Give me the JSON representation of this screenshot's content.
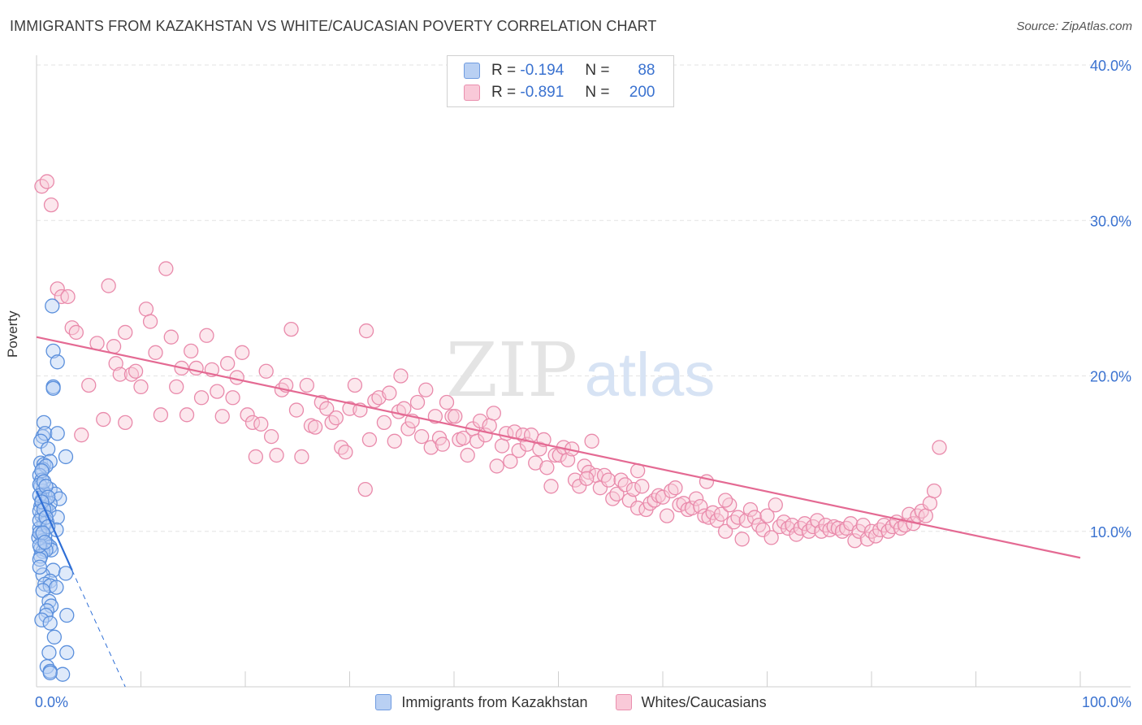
{
  "title": "IMMIGRANTS FROM KAZAKHSTAN VS WHITE/CAUCASIAN POVERTY CORRELATION CHART",
  "source": "Source: ZipAtlas.com",
  "watermark": {
    "zip": "ZIP",
    "atlas": "atlas"
  },
  "legend_stats": {
    "r_label": "R =",
    "n_label": "N =",
    "series": [
      {
        "r": "-0.194",
        "n": "88"
      },
      {
        "r": "-0.891",
        "n": "200"
      }
    ]
  },
  "colors": {
    "blue_fill": "#b9d0f3",
    "blue_stroke": "#5a8fdc",
    "blue_line": "#2f6fd6",
    "pink_fill": "#f9c9d8",
    "pink_stroke": "#e98aab",
    "pink_line": "#e46a93",
    "axis_text": "#3a72d0",
    "grid": "#e3e3e3"
  },
  "chart_data": {
    "type": "scatter",
    "title": "IMMIGRANTS FROM KAZAKHSTAN VS WHITE/CAUCASIAN POVERTY CORRELATION CHART",
    "xlabel": "",
    "ylabel": "Poverty",
    "xlim": [
      0,
      100
    ],
    "ylim": [
      0,
      40
    ],
    "x_tick_labels": [
      "0.0%",
      "100.0%"
    ],
    "y_ticks": [
      10,
      20,
      30,
      40
    ],
    "y_tick_labels": [
      "10.0%",
      "20.0%",
      "30.0%",
      "40.0%"
    ],
    "grid": true,
    "legend_position": "top-center",
    "series": [
      {
        "name": "Immigrants from Kazakhstan",
        "color": "blue",
        "r": -0.194,
        "n": 88,
        "trend": {
          "x": [
            0,
            3.4
          ],
          "y": [
            12.6,
            7.5
          ]
        },
        "trend_extension": {
          "x": [
            3.4,
            8.5
          ],
          "y": [
            7.5,
            0
          ]
        },
        "points": [
          [
            1.5,
            24.5
          ],
          [
            1.6,
            21.6
          ],
          [
            2.0,
            20.9
          ],
          [
            1.6,
            19.3
          ],
          [
            1.6,
            19.2
          ],
          [
            0.7,
            17.0
          ],
          [
            0.6,
            16.1
          ],
          [
            0.8,
            16.3
          ],
          [
            2.0,
            16.3
          ],
          [
            0.4,
            15.8
          ],
          [
            1.1,
            15.3
          ],
          [
            2.8,
            14.8
          ],
          [
            0.4,
            14.4
          ],
          [
            0.7,
            14.3
          ],
          [
            1.3,
            14.5
          ],
          [
            0.6,
            14.0
          ],
          [
            0.9,
            14.2
          ],
          [
            0.3,
            13.6
          ],
          [
            0.5,
            13.3
          ],
          [
            0.4,
            12.9
          ],
          [
            1.3,
            12.7
          ],
          [
            0.6,
            12.6
          ],
          [
            0.8,
            12.4
          ],
          [
            1.8,
            12.4
          ],
          [
            2.2,
            12.1
          ],
          [
            0.5,
            12.0
          ],
          [
            0.8,
            11.8
          ],
          [
            1.3,
            11.8
          ],
          [
            0.4,
            11.6
          ],
          [
            0.9,
            11.5
          ],
          [
            1.2,
            11.3
          ],
          [
            0.5,
            11.0
          ],
          [
            2.0,
            10.9
          ],
          [
            0.7,
            10.5
          ],
          [
            1.0,
            10.6
          ],
          [
            0.3,
            10.2
          ],
          [
            1.9,
            10.1
          ],
          [
            0.5,
            9.8
          ],
          [
            0.8,
            9.7
          ],
          [
            0.2,
            9.6
          ],
          [
            0.6,
            9.4
          ],
          [
            1.0,
            9.2
          ],
          [
            1.3,
            9.0
          ],
          [
            0.4,
            8.9
          ],
          [
            1.4,
            8.8
          ],
          [
            0.6,
            8.7
          ],
          [
            0.9,
            8.8
          ],
          [
            0.4,
            8.4
          ],
          [
            1.6,
            7.5
          ],
          [
            0.6,
            7.2
          ],
          [
            2.8,
            7.3
          ],
          [
            1.3,
            6.8
          ],
          [
            0.8,
            6.6
          ],
          [
            1.3,
            6.5
          ],
          [
            1.9,
            6.4
          ],
          [
            0.6,
            6.2
          ],
          [
            1.2,
            5.5
          ],
          [
            1.4,
            5.2
          ],
          [
            1.0,
            4.9
          ],
          [
            0.9,
            4.6
          ],
          [
            2.9,
            4.6
          ],
          [
            0.5,
            4.3
          ],
          [
            1.3,
            4.1
          ],
          [
            1.7,
            3.2
          ],
          [
            2.9,
            2.2
          ],
          [
            1.2,
            2.2
          ],
          [
            1.0,
            1.3
          ],
          [
            1.3,
            1.0
          ],
          [
            2.5,
            0.8
          ],
          [
            1.3,
            0.9
          ],
          [
            0.3,
            13.0
          ],
          [
            0.3,
            12.3
          ],
          [
            0.3,
            11.3
          ],
          [
            0.3,
            10.7
          ],
          [
            0.3,
            9.9
          ],
          [
            0.3,
            9.1
          ],
          [
            0.3,
            8.2
          ],
          [
            0.3,
            7.7
          ],
          [
            0.5,
            13.9
          ],
          [
            0.7,
            13.2
          ],
          [
            0.9,
            12.9
          ],
          [
            1.1,
            12.2
          ],
          [
            0.5,
            11.9
          ],
          [
            0.7,
            11.4
          ],
          [
            0.9,
            10.9
          ],
          [
            1.1,
            10.3
          ],
          [
            0.6,
            9.9
          ],
          [
            0.8,
            9.3
          ]
        ]
      },
      {
        "name": "Whites/Caucasians",
        "color": "pink",
        "r": -0.891,
        "n": 200,
        "trend": {
          "x": [
            0,
            100
          ],
          "y": [
            22.5,
            8.3
          ]
        },
        "points": [
          [
            0.5,
            32.2
          ],
          [
            1.0,
            32.5
          ],
          [
            1.4,
            31.0
          ],
          [
            2.0,
            25.6
          ],
          [
            2.4,
            25.1
          ],
          [
            3.0,
            25.1
          ],
          [
            3.4,
            23.1
          ],
          [
            3.8,
            22.8
          ],
          [
            4.3,
            16.2
          ],
          [
            5.0,
            19.4
          ],
          [
            5.8,
            22.1
          ],
          [
            6.4,
            17.2
          ],
          [
            6.9,
            25.8
          ],
          [
            7.4,
            21.9
          ],
          [
            7.6,
            20.8
          ],
          [
            8.0,
            20.1
          ],
          [
            8.5,
            22.8
          ],
          [
            9.1,
            20.1
          ],
          [
            9.5,
            20.3
          ],
          [
            10.0,
            19.3
          ],
          [
            10.5,
            24.3
          ],
          [
            10.9,
            23.5
          ],
          [
            11.4,
            21.5
          ],
          [
            11.9,
            17.5
          ],
          [
            12.4,
            26.9
          ],
          [
            12.9,
            22.5
          ],
          [
            13.4,
            19.3
          ],
          [
            13.9,
            20.5
          ],
          [
            14.4,
            17.5
          ],
          [
            14.8,
            21.6
          ],
          [
            15.3,
            20.5
          ],
          [
            15.8,
            18.6
          ],
          [
            16.3,
            22.6
          ],
          [
            16.8,
            20.4
          ],
          [
            17.3,
            19.0
          ],
          [
            17.8,
            17.4
          ],
          [
            18.3,
            20.8
          ],
          [
            18.8,
            18.6
          ],
          [
            19.2,
            19.9
          ],
          [
            19.7,
            21.5
          ],
          [
            20.2,
            17.5
          ],
          [
            20.7,
            17.0
          ],
          [
            21.0,
            14.8
          ],
          [
            21.5,
            16.9
          ],
          [
            22.0,
            20.3
          ],
          [
            22.5,
            16.1
          ],
          [
            23.0,
            14.9
          ],
          [
            23.5,
            19.1
          ],
          [
            23.9,
            19.4
          ],
          [
            24.4,
            23.0
          ],
          [
            24.9,
            17.8
          ],
          [
            25.4,
            14.8
          ],
          [
            25.9,
            19.4
          ],
          [
            26.3,
            16.8
          ],
          [
            26.7,
            16.7
          ],
          [
            27.3,
            18.3
          ],
          [
            27.8,
            17.9
          ],
          [
            28.3,
            17.0
          ],
          [
            28.7,
            17.3
          ],
          [
            29.2,
            15.4
          ],
          [
            29.6,
            15.1
          ],
          [
            30.0,
            17.9
          ],
          [
            30.5,
            19.4
          ],
          [
            31.0,
            17.8
          ],
          [
            31.5,
            12.7
          ],
          [
            31.9,
            15.9
          ],
          [
            32.4,
            18.4
          ],
          [
            32.8,
            18.6
          ],
          [
            33.3,
            17.0
          ],
          [
            33.8,
            18.9
          ],
          [
            34.3,
            15.8
          ],
          [
            34.7,
            17.7
          ],
          [
            35.2,
            17.9
          ],
          [
            35.6,
            16.6
          ],
          [
            36.0,
            17.1
          ],
          [
            36.5,
            18.3
          ],
          [
            36.9,
            16.1
          ],
          [
            37.3,
            19.1
          ],
          [
            37.8,
            15.4
          ],
          [
            38.2,
            17.4
          ],
          [
            38.6,
            16.0
          ],
          [
            38.9,
            15.6
          ],
          [
            39.3,
            18.3
          ],
          [
            39.8,
            17.4
          ],
          [
            40.1,
            17.4
          ],
          [
            40.5,
            15.9
          ],
          [
            40.9,
            16.0
          ],
          [
            41.3,
            14.9
          ],
          [
            41.8,
            16.6
          ],
          [
            42.2,
            15.8
          ],
          [
            42.5,
            17.1
          ],
          [
            43.0,
            16.2
          ],
          [
            43.4,
            16.8
          ],
          [
            43.8,
            17.6
          ],
          [
            44.1,
            14.2
          ],
          [
            44.6,
            15.5
          ],
          [
            45.0,
            16.3
          ],
          [
            45.4,
            14.5
          ],
          [
            45.8,
            16.4
          ],
          [
            46.2,
            15.2
          ],
          [
            46.6,
            16.2
          ],
          [
            47.0,
            15.6
          ],
          [
            47.4,
            16.2
          ],
          [
            47.8,
            14.4
          ],
          [
            48.2,
            15.3
          ],
          [
            48.6,
            15.9
          ],
          [
            48.9,
            14.1
          ],
          [
            49.3,
            12.9
          ],
          [
            49.7,
            14.9
          ],
          [
            50.1,
            14.9
          ],
          [
            50.5,
            15.4
          ],
          [
            50.9,
            14.6
          ],
          [
            51.3,
            15.3
          ],
          [
            51.6,
            13.3
          ],
          [
            52.0,
            12.9
          ],
          [
            52.5,
            14.2
          ],
          [
            52.9,
            13.8
          ],
          [
            53.2,
            15.8
          ],
          [
            53.6,
            13.6
          ],
          [
            54.0,
            12.8
          ],
          [
            54.4,
            13.6
          ],
          [
            54.8,
            13.3
          ],
          [
            55.2,
            12.1
          ],
          [
            55.6,
            12.4
          ],
          [
            56.0,
            13.3
          ],
          [
            56.4,
            13.0
          ],
          [
            56.8,
            12.0
          ],
          [
            57.2,
            12.7
          ],
          [
            57.6,
            11.5
          ],
          [
            58.0,
            12.9
          ],
          [
            58.4,
            11.4
          ],
          [
            58.8,
            11.8
          ],
          [
            59.2,
            12.0
          ],
          [
            59.6,
            12.3
          ],
          [
            60.0,
            12.2
          ],
          [
            60.4,
            11.0
          ],
          [
            60.8,
            12.6
          ],
          [
            61.2,
            12.8
          ],
          [
            61.6,
            11.7
          ],
          [
            62.0,
            11.8
          ],
          [
            62.4,
            11.4
          ],
          [
            62.8,
            11.5
          ],
          [
            63.2,
            12.1
          ],
          [
            63.6,
            11.6
          ],
          [
            64.0,
            11.0
          ],
          [
            64.4,
            10.9
          ],
          [
            64.8,
            11.2
          ],
          [
            65.2,
            10.7
          ],
          [
            65.6,
            11.1
          ],
          [
            66.0,
            10.0
          ],
          [
            66.4,
            11.7
          ],
          [
            66.8,
            10.6
          ],
          [
            67.2,
            10.9
          ],
          [
            67.6,
            9.5
          ],
          [
            68.0,
            10.7
          ],
          [
            68.4,
            11.4
          ],
          [
            68.8,
            10.9
          ],
          [
            69.2,
            10.4
          ],
          [
            69.6,
            10.1
          ],
          [
            70.0,
            11.0
          ],
          [
            70.4,
            9.6
          ],
          [
            70.8,
            11.7
          ],
          [
            71.2,
            10.3
          ],
          [
            71.6,
            10.6
          ],
          [
            72.0,
            10.2
          ],
          [
            72.4,
            10.4
          ],
          [
            72.8,
            9.8
          ],
          [
            73.2,
            10.2
          ],
          [
            73.6,
            10.5
          ],
          [
            74.0,
            10.0
          ],
          [
            74.4,
            10.3
          ],
          [
            74.8,
            10.7
          ],
          [
            75.2,
            10.0
          ],
          [
            75.6,
            10.4
          ],
          [
            76.0,
            10.1
          ],
          [
            76.4,
            10.3
          ],
          [
            76.8,
            10.2
          ],
          [
            77.2,
            10.0
          ],
          [
            77.6,
            10.2
          ],
          [
            78.0,
            10.5
          ],
          [
            78.4,
            9.4
          ],
          [
            78.8,
            10.0
          ],
          [
            79.2,
            10.4
          ],
          [
            79.6,
            9.5
          ],
          [
            80.0,
            10.0
          ],
          [
            80.4,
            9.7
          ],
          [
            80.8,
            10.1
          ],
          [
            81.2,
            10.4
          ],
          [
            81.6,
            10.0
          ],
          [
            82.0,
            10.3
          ],
          [
            82.4,
            10.6
          ],
          [
            82.8,
            10.2
          ],
          [
            83.2,
            10.4
          ],
          [
            83.6,
            11.1
          ],
          [
            84.0,
            10.5
          ],
          [
            84.4,
            11.0
          ],
          [
            84.8,
            11.3
          ],
          [
            85.2,
            11.0
          ],
          [
            85.6,
            11.8
          ],
          [
            86.0,
            12.6
          ],
          [
            86.5,
            15.4
          ],
          [
            31.6,
            22.9
          ],
          [
            66.0,
            12.0
          ],
          [
            57.6,
            13.9
          ],
          [
            34.9,
            20.0
          ],
          [
            8.5,
            17.0
          ],
          [
            64.2,
            13.2
          ],
          [
            52.7,
            13.4
          ]
        ]
      }
    ]
  },
  "bottom_legend": [
    "Immigrants from Kazakhstan",
    "Whites/Caucasians"
  ]
}
